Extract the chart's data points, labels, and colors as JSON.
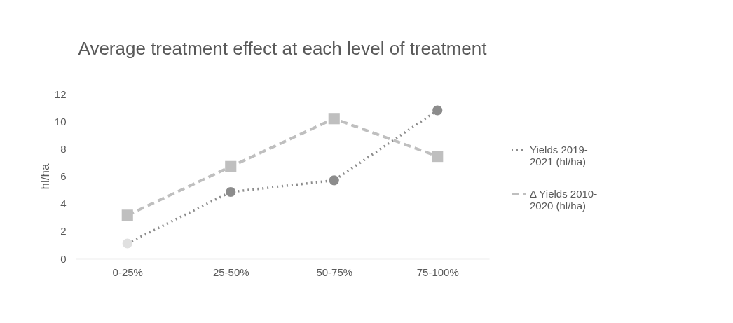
{
  "chart_data": {
    "type": "line",
    "title": "Average treatment effect at each level of treatment",
    "ylabel": "hl/ha",
    "categories": [
      "0-25%",
      "25-50%",
      "50-75%",
      "75-100%"
    ],
    "series": [
      {
        "name": "Yields 2019-2021 (hl/ha)",
        "color": "#8c8c8c",
        "colors": [
          "#e0e0e0",
          "#8c8c8c",
          "#8c8c8c",
          "#8c8c8c"
        ],
        "marker": "circle",
        "line_style": "dotted",
        "values": [
          1.1,
          4.85,
          5.7,
          10.8
        ]
      },
      {
        "name": "Δ Yields 2010-2020 (hl/ha)",
        "color": "#bfbfbf",
        "marker": "square",
        "line_style": "dashed",
        "values": [
          3.15,
          6.7,
          10.2,
          7.45
        ]
      }
    ],
    "ylim": [
      0,
      12
    ],
    "yticks": [
      0,
      2,
      4,
      6,
      8,
      10,
      12
    ],
    "grid": false,
    "legend": "right"
  }
}
